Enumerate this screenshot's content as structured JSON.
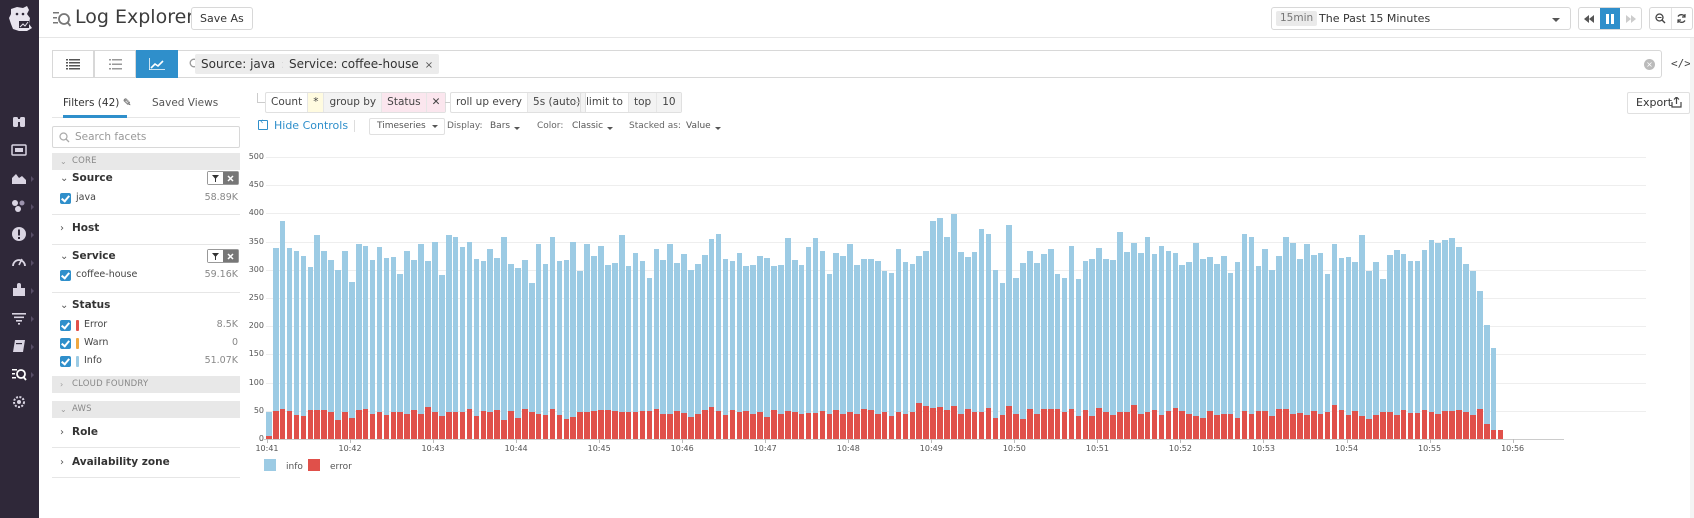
{
  "app": {
    "title": "Log Explorer",
    "save_as_label": "Save As"
  },
  "nav": {
    "items": [
      {
        "name": "infrastructure",
        "icon": "binoculars-icon"
      },
      {
        "name": "dashboards",
        "icon": "dashboard-icon"
      },
      {
        "name": "metrics",
        "icon": "area-chart-icon"
      },
      {
        "name": "integrations",
        "icon": "bubbles-icon"
      },
      {
        "name": "monitors",
        "icon": "alert-icon"
      },
      {
        "name": "apm",
        "icon": "gauge-icon"
      },
      {
        "name": "integrations-puzzle",
        "icon": "puzzle-icon"
      },
      {
        "name": "logs-filter",
        "icon": "filter-lines-icon"
      },
      {
        "name": "notebooks",
        "icon": "notebook-icon"
      },
      {
        "name": "logs",
        "icon": "logs-search-icon",
        "active": true
      },
      {
        "name": "settings",
        "icon": "gear-icon"
      }
    ]
  },
  "timepicker": {
    "badge": "15min",
    "label": "The Past 15 Minutes"
  },
  "search": {
    "pills": [
      {
        "label": "Source: java",
        "close": "×"
      },
      {
        "label": "Service: coffee-house",
        "close": "×"
      }
    ],
    "code_toggle": "</>"
  },
  "facets": {
    "tabs": [
      {
        "label": "Filters (42)",
        "active": true
      },
      {
        "label": "Saved Views",
        "active": false
      }
    ],
    "search_placeholder": "Search facets",
    "sections": {
      "core": "CORE",
      "cloud_foundry": "CLOUD FOUNDRY",
      "aws": "AWS"
    },
    "groups": {
      "source": {
        "title": "Source",
        "items": [
          {
            "label": "java",
            "count": "58.89K"
          }
        ]
      },
      "host": {
        "title": "Host"
      },
      "service": {
        "title": "Service",
        "items": [
          {
            "label": "coffee-house",
            "count": "59.16K"
          }
        ]
      },
      "status": {
        "title": "Status",
        "items": [
          {
            "label": "Error",
            "count": "8.5K",
            "color": "#e0504a"
          },
          {
            "label": "Warn",
            "count": "0",
            "color": "#f0a840"
          },
          {
            "label": "Info",
            "count": "51.07K",
            "color": "#9ccbe4"
          }
        ]
      },
      "role": {
        "title": "Role"
      },
      "availability_zone": {
        "title": "Availability zone"
      }
    }
  },
  "query": {
    "measure": "Count",
    "measure_field": "*",
    "group_by_label": "group by",
    "group_by_value": "Status",
    "group_by_remove": "✕",
    "rollup_label": "roll up every",
    "rollup_value": "5s (auto)",
    "limit_label": "limit to",
    "limit_mode": "top",
    "limit_value": "10",
    "export_label": "Export"
  },
  "controls": {
    "hide_label": "Hide Controls",
    "viz_type": "Timeseries",
    "display_label": "Display:",
    "display_value": "Bars",
    "color_label": "Color:",
    "color_value": "Classic",
    "stacked_label": "Stacked as:",
    "stacked_value": "Value"
  },
  "colors": {
    "accent": "#2f8fcb",
    "info": "#9ccbe4",
    "error": "#e0504a",
    "nav_bg": "#2f2839"
  },
  "chart_data": {
    "type": "bar",
    "stacked": true,
    "title": "",
    "xlabel": "",
    "ylabel": "",
    "ylim": [
      0,
      500
    ],
    "yticks": [
      0,
      50,
      100,
      150,
      200,
      250,
      300,
      350,
      400,
      450,
      500
    ],
    "xticks": [
      "10:41",
      "10:42",
      "10:43",
      "10:44",
      "10:45",
      "10:46",
      "10:47",
      "10:48",
      "10:49",
      "10:50",
      "10:51",
      "10:52",
      "10:53",
      "10:54",
      "10:55",
      "10:56"
    ],
    "interval_seconds": 5,
    "grid": true,
    "legend_position": "bottom-left",
    "legend": [
      "info",
      "error"
    ],
    "series": [
      {
        "name": "error",
        "color": "#e0504a",
        "values": [
          5,
          50,
          53,
          49,
          43,
          40,
          51,
          51,
          51,
          48,
          34,
          47,
          38,
          51,
          53,
          45,
          48,
          43,
          47,
          47,
          44,
          52,
          45,
          57,
          47,
          40,
          48,
          47,
          47,
          54,
          40,
          50,
          47,
          51,
          33,
          50,
          37,
          54,
          47,
          45,
          43,
          54,
          43,
          35,
          39,
          47,
          48,
          50,
          51,
          52,
          50,
          48,
          47,
          47,
          49,
          50,
          54,
          45,
          45,
          50,
          46,
          39,
          44,
          52,
          56,
          49,
          43,
          51,
          47,
          50,
          45,
          48,
          39,
          51,
          44,
          50,
          48,
          44,
          46,
          46,
          50,
          44,
          52,
          45,
          48,
          45,
          54,
          51,
          45,
          47,
          40,
          47,
          44,
          48,
          63,
          59,
          55,
          56,
          52,
          59,
          44,
          54,
          48,
          47,
          55,
          37,
          43,
          58,
          45,
          36,
          53,
          45,
          53,
          54,
          54,
          48,
          53,
          40,
          52,
          40,
          55,
          48,
          43,
          47,
          47,
          60,
          44,
          48,
          51,
          42,
          50,
          55,
          50,
          44,
          40,
          38,
          49,
          42,
          44,
          45,
          38,
          50,
          45,
          50,
          49,
          41,
          53,
          53,
          44,
          46,
          43,
          49,
          44,
          48,
          60,
          52,
          42,
          50,
          40,
          36,
          43,
          47,
          47,
          43,
          52,
          46,
          46,
          52,
          48,
          45,
          49,
          50,
          51,
          48,
          43,
          53,
          26,
          16,
          16,
          0,
          0
        ]
      },
      {
        "name": "info",
        "color": "#9ccbe4",
        "values": [
          43,
          288,
          333,
          290,
          291,
          284,
          254,
          311,
          282,
          269,
          266,
          287,
          241,
          295,
          290,
          272,
          292,
          278,
          275,
          245,
          290,
          265,
          300,
          258,
          302,
          251,
          313,
          311,
          293,
          296,
          279,
          265,
          289,
          270,
          326,
          261,
          266,
          264,
          230,
          300,
          268,
          304,
          272,
          283,
          311,
          251,
          297,
          274,
          292,
          256,
          262,
          314,
          260,
          283,
          266,
          235,
          283,
          272,
          300,
          262,
          282,
          261,
          266,
          275,
          299,
          314,
          276,
          265,
          283,
          256,
          264,
          277,
          282,
          255,
          265,
          307,
          269,
          264,
          294,
          310,
          283,
          248,
          278,
          280,
          297,
          263,
          266,
          268,
          270,
          251,
          255,
          289,
          270,
          262,
          262,
          274,
          331,
          335,
          307,
          340,
          287,
          269,
          284,
          325,
          309,
          263,
          234,
          322,
          240,
          276,
          281,
          267,
          275,
          283,
          239,
          238,
          289,
          244,
          264,
          279,
          284,
          272,
          275,
          320,
          284,
          288,
          286,
          311,
          277,
          300,
          284,
          274,
          258,
          269,
          308,
          281,
          274,
          268,
          281,
          250,
          275,
          314,
          314,
          257,
          287,
          258,
          271,
          305,
          304,
          274,
          302,
          278,
          286,
          245,
          285,
          269,
          281,
          263,
          322,
          262,
          270,
          236,
          280,
          292,
          276,
          270,
          270,
          283,
          305,
          302,
          304,
          306,
          289,
          262,
          254,
          210,
          176,
          145,
          0,
          0,
          0
        ]
      }
    ]
  }
}
